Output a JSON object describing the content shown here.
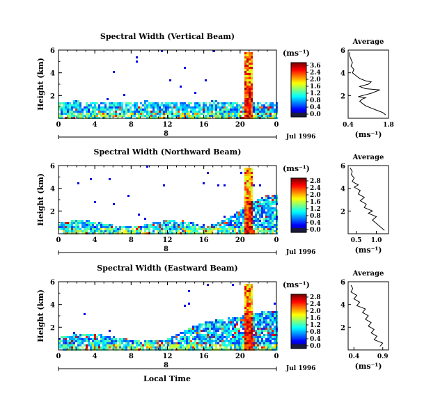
{
  "figure": {
    "shared_xlabel": "Local Time",
    "date_label": "Jul 1996",
    "day_label": "8",
    "colorbar_unit": "(ms⁻¹)",
    "avg_xlabel": "(ms⁻¹)",
    "avg_title": "Average"
  },
  "chart_data": [
    {
      "type": "heatmap",
      "title": "Spectral Width (Vertical Beam)",
      "ylabel": "Height (km)",
      "xlim": [
        0,
        24
      ],
      "ylim": [
        0,
        6
      ],
      "xticks": [
        "0",
        "4",
        "8",
        "12",
        "16",
        "20",
        "0"
      ],
      "yticks": [
        "2",
        "4",
        "6"
      ],
      "colorbar": {
        "label": "(ms⁻¹)",
        "ticks": [
          "3.6",
          "2.4",
          "2.0",
          "1.6",
          "1.2",
          "0.8",
          "0.4",
          "0.0"
        ]
      },
      "profile": {
        "title": "Average",
        "xlabel": "(ms⁻¹)",
        "xlim": [
          0.4,
          1.8
        ],
        "xticks": [
          "0.4",
          "1.8"
        ],
        "yticks": [
          "2",
          "4",
          "6"
        ],
        "points": [
          [
            1.7,
            0.3
          ],
          [
            1.6,
            0.5
          ],
          [
            1.4,
            0.7
          ],
          [
            1.2,
            0.9
          ],
          [
            1.0,
            1.1
          ],
          [
            0.9,
            1.3
          ],
          [
            0.8,
            1.5
          ],
          [
            0.9,
            1.7
          ],
          [
            1.0,
            1.8
          ],
          [
            0.75,
            1.9
          ],
          [
            0.9,
            2.0
          ],
          [
            1.2,
            2.2
          ],
          [
            1.5,
            2.5
          ],
          [
            1.0,
            2.6
          ],
          [
            0.8,
            2.8
          ],
          [
            1.1,
            3.0
          ],
          [
            1.2,
            3.2
          ],
          [
            1.0,
            3.3
          ],
          [
            0.8,
            3.5
          ],
          [
            0.7,
            3.7
          ],
          [
            0.55,
            4.0
          ],
          [
            0.6,
            4.3
          ],
          [
            0.5,
            4.6
          ],
          [
            0.55,
            4.9
          ],
          [
            0.5,
            5.2
          ],
          [
            0.45,
            5.5
          ],
          [
            0.45,
            5.8
          ]
        ]
      }
    },
    {
      "type": "heatmap",
      "title": "Spectral Width (Northward Beam)",
      "ylabel": "Height (km)",
      "xlim": [
        0,
        24
      ],
      "ylim": [
        0,
        6
      ],
      "xticks": [
        "0",
        "4",
        "8",
        "12",
        "16",
        "20",
        "0"
      ],
      "yticks": [
        "2",
        "4",
        "6"
      ],
      "colorbar": {
        "label": "(ms⁻¹)",
        "ticks": [
          "2.8",
          "2.4",
          "2.0",
          "1.6",
          "1.2",
          "0.8",
          "0.4",
          "0.0"
        ]
      },
      "profile": {
        "title": "Average",
        "xlabel": "(ms⁻¹)",
        "xlim": [
          0.3,
          1.3
        ],
        "xticks": [
          "0.5",
          "1.0"
        ],
        "yticks": [
          "2",
          "4",
          "6"
        ],
        "points": [
          [
            1.2,
            0.3
          ],
          [
            1.1,
            0.6
          ],
          [
            1.0,
            0.9
          ],
          [
            0.9,
            1.2
          ],
          [
            1.0,
            1.5
          ],
          [
            0.8,
            1.8
          ],
          [
            0.9,
            2.0
          ],
          [
            0.7,
            2.3
          ],
          [
            0.75,
            2.6
          ],
          [
            0.6,
            2.9
          ],
          [
            0.7,
            3.2
          ],
          [
            0.55,
            3.5
          ],
          [
            0.6,
            3.8
          ],
          [
            0.45,
            4.1
          ],
          [
            0.55,
            4.3
          ],
          [
            0.4,
            4.6
          ],
          [
            0.45,
            4.9
          ],
          [
            0.38,
            5.2
          ],
          [
            0.4,
            5.5
          ],
          [
            0.35,
            5.8
          ]
        ]
      }
    },
    {
      "type": "heatmap",
      "title": "Spectral Width (Eastward Beam)",
      "ylabel": "Height (km)",
      "xlim": [
        0,
        24
      ],
      "ylim": [
        0,
        6
      ],
      "xticks": [
        "0",
        "4",
        "8",
        "12",
        "16",
        "20",
        "0"
      ],
      "yticks": [
        "2",
        "4",
        "6"
      ],
      "colorbar": {
        "label": "(ms⁻¹)",
        "ticks": [
          "2.8",
          "2.4",
          "2.0",
          "1.6",
          "1.2",
          "0.8",
          "0.4",
          "0.0"
        ]
      },
      "profile": {
        "title": "Average",
        "xlabel": "(ms⁻¹)",
        "xlim": [
          0.3,
          1.0
        ],
        "xticks": [
          "0.4",
          "0.9"
        ],
        "yticks": [
          "2",
          "4",
          "6"
        ],
        "points": [
          [
            0.85,
            0.3
          ],
          [
            0.9,
            0.6
          ],
          [
            0.75,
            0.9
          ],
          [
            0.8,
            1.2
          ],
          [
            0.7,
            1.5
          ],
          [
            0.75,
            1.8
          ],
          [
            0.65,
            2.1
          ],
          [
            0.7,
            2.4
          ],
          [
            0.6,
            2.7
          ],
          [
            0.65,
            3.0
          ],
          [
            0.55,
            3.3
          ],
          [
            0.6,
            3.6
          ],
          [
            0.45,
            3.9
          ],
          [
            0.5,
            4.2
          ],
          [
            0.4,
            4.5
          ],
          [
            0.45,
            4.8
          ],
          [
            0.35,
            5.1
          ],
          [
            0.38,
            5.4
          ],
          [
            0.35,
            5.7
          ]
        ]
      }
    }
  ]
}
